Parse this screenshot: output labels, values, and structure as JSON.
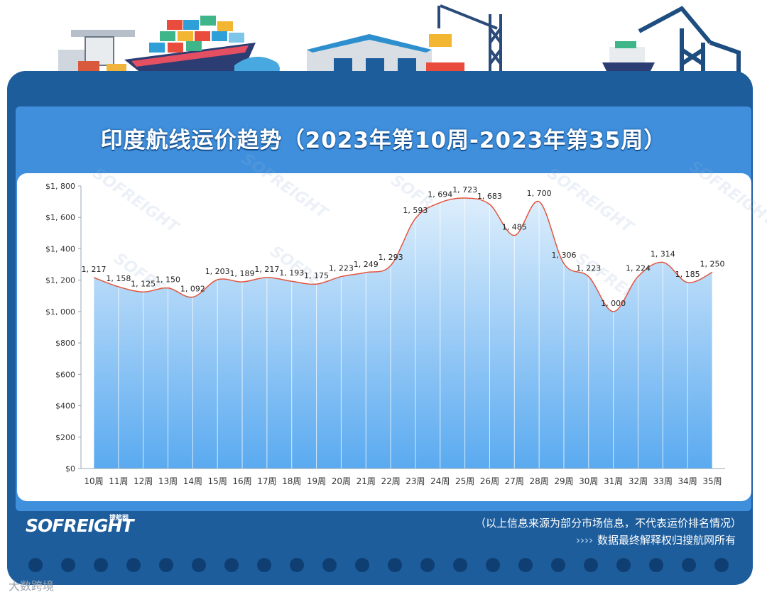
{
  "page": {
    "title": "印度航线运价趋势（2023年第10周-2023年第35周）",
    "disclaimer": "（以上信息来源为部分市场信息，不代表运价排名情况）",
    "rights": "数据最终解释权归搜航网所有",
    "rights_arrows": "››››",
    "logo": "SOFREIGHT",
    "logo_sub": "搜航网",
    "source_mark": "大数跨境",
    "watermark": "SOFREIGHT"
  },
  "colors": {
    "frame": "#1d5d9c",
    "inner": "#3f8fdc",
    "line": "#e2553e",
    "area_top": "#ddeefc",
    "area_bottom": "#5aaaf0"
  },
  "chart_data": {
    "type": "area",
    "title": "印度航线运价趋势（2023年第10周-2023年第35周）",
    "xlabel": "",
    "ylabel": "",
    "categories": [
      "10周",
      "11周",
      "12周",
      "13周",
      "14周",
      "15周",
      "16周",
      "17周",
      "18周",
      "19周",
      "20周",
      "21周",
      "22周",
      "23周",
      "24周",
      "25周",
      "26周",
      "27周",
      "28周",
      "29周",
      "30周",
      "31周",
      "32周",
      "33周",
      "34周",
      "35周"
    ],
    "values": [
      1217,
      1158,
      1125,
      1150,
      1092,
      1203,
      1189,
      1217,
      1193,
      1175,
      1223,
      1249,
      1293,
      1593,
      1694,
      1723,
      1683,
      1485,
      1700,
      1306,
      1223,
      1000,
      1224,
      1314,
      1185,
      1250
    ],
    "data_labels": [
      "1, 217",
      "1, 158",
      "1, 125",
      "1, 150",
      "1, 092",
      "1, 203",
      "1, 189",
      "1, 217",
      "1, 193",
      "1, 175",
      "1, 223",
      "1, 249",
      "1, 293",
      "1, 593",
      "1, 694",
      "1, 723",
      "1, 683",
      "1, 485",
      "1, 700",
      "1, 306",
      "1, 223",
      "1, 000",
      "1, 224",
      "1, 314",
      "1, 185",
      "1, 250"
    ],
    "ylim": [
      0,
      1800
    ],
    "yticks": [
      0,
      200,
      400,
      600,
      800,
      1000,
      1200,
      1400,
      1600,
      1800
    ],
    "ytick_labels": [
      "$0",
      "$200",
      "$400",
      "$600",
      "$800",
      "$1, 000",
      "$1, 200",
      "$1, 400",
      "$1, 600",
      "$1, 800"
    ],
    "grid": "vertical",
    "legend": "none"
  }
}
